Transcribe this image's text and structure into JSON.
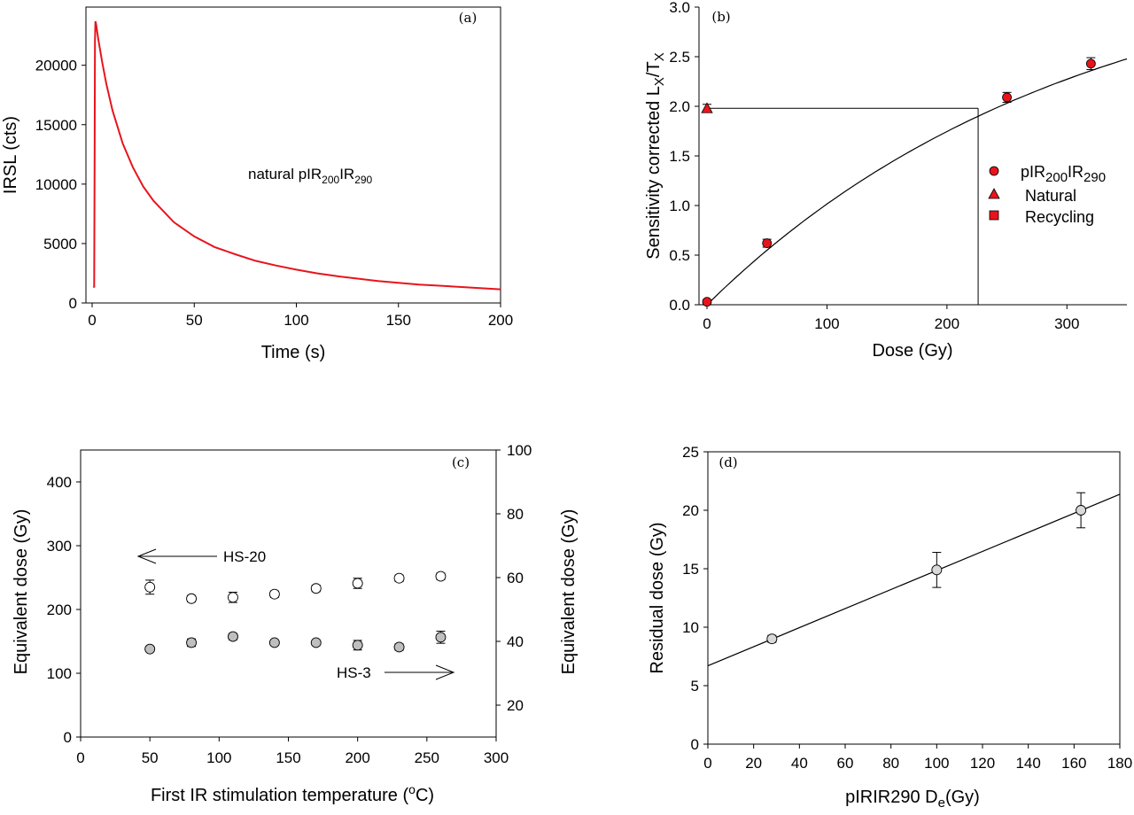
{
  "chart_data": [
    {
      "type": "line",
      "panel_label": "(a)",
      "xlabel": "Time (s)",
      "ylabel": "IRSL (cts)",
      "xlim": [
        0,
        200
      ],
      "ylim": [
        0,
        24000
      ],
      "xticks": [
        "0",
        "50",
        "100",
        "150",
        "200"
      ],
      "yticks": [
        "0",
        "5000",
        "10000",
        "15000",
        "20000"
      ],
      "annotation": {
        "main": "natural pIR",
        "sub1": "200",
        "mid": "IR",
        "sub2": "290"
      },
      "series": [
        {
          "color": "#e8141c",
          "points": [
            [
              0.8,
              1400
            ],
            [
              1.0,
              1300
            ],
            [
              1.2,
              12000
            ],
            [
              1.4,
              22000
            ],
            [
              1.6,
              23700
            ],
            [
              2,
              23400
            ],
            [
              3,
              22200
            ],
            [
              5,
              20200
            ],
            [
              7,
              18400
            ],
            [
              10,
              16200
            ],
            [
              15,
              13400
            ],
            [
              20,
              11400
            ],
            [
              25,
              9800
            ],
            [
              30,
              8600
            ],
            [
              40,
              6800
            ],
            [
              50,
              5600
            ],
            [
              60,
              4700
            ],
            [
              70,
              4100
            ],
            [
              80,
              3550
            ],
            [
              90,
              3150
            ],
            [
              100,
              2800
            ],
            [
              110,
              2500
            ],
            [
              120,
              2250
            ],
            [
              130,
              2050
            ],
            [
              140,
              1850
            ],
            [
              150,
              1700
            ],
            [
              160,
              1550
            ],
            [
              170,
              1450
            ],
            [
              180,
              1350
            ],
            [
              190,
              1250
            ],
            [
              200,
              1150
            ]
          ]
        }
      ]
    },
    {
      "type": "scatter",
      "panel_label": "(b)",
      "xlabel": "Dose (Gy)",
      "ylabel": {
        "main": "Sensitivity corrected L",
        "sub1": "X",
        "mid": "/T",
        "sub2": "X"
      },
      "xlim": [
        0,
        350
      ],
      "ylim": [
        0,
        3.0
      ],
      "xticks": [
        "0",
        "100",
        "200",
        "300"
      ],
      "yticks": [
        "0.0",
        "0.5",
        "1.0",
        "1.5",
        "2.0",
        "2.5",
        "3.0"
      ],
      "legend": [
        {
          "marker": "circle",
          "label_main": "pIR",
          "label_sub1": "200",
          "label_mid": "IR",
          "label_sub2": "290"
        },
        {
          "marker": "triangle",
          "label": "Natural"
        },
        {
          "marker": "square",
          "label": "Recycling"
        }
      ],
      "legend_position": "right",
      "regenerated_points": [
        {
          "x": 0,
          "y": 0.03,
          "err": 0.02
        },
        {
          "x": 50,
          "y": 0.62,
          "err": 0.04
        },
        {
          "x": 250,
          "y": 2.09,
          "err": 0.05
        },
        {
          "x": 320,
          "y": 2.43,
          "err": 0.06
        }
      ],
      "natural": {
        "x": 0,
        "y": 1.98,
        "err": 0.04
      },
      "de_gy": 226,
      "fit": "saturating exponential through points"
    },
    {
      "type": "scatter",
      "panel_label": "(c)",
      "xlabel": {
        "main": "First IR stimulation temperature (",
        "sup": "o",
        "end": "C)"
      },
      "ylabel_left": "Equivalent dose (Gy)",
      "ylabel_right": "Equivalent dose (Gy)",
      "xlim": [
        0,
        300
      ],
      "ylim_left": [
        0,
        450
      ],
      "ylim_right": [
        10,
        100
      ],
      "xticks": [
        "0",
        "50",
        "100",
        "150",
        "200",
        "250",
        "300"
      ],
      "yticks_left": [
        "0",
        "100",
        "200",
        "300",
        "400"
      ],
      "yticks_right": [
        "20",
        "40",
        "60",
        "80",
        "100"
      ],
      "series": [
        {
          "name": "HS-20",
          "axis": "left",
          "marker": "open circle",
          "points": [
            {
              "x": 50,
              "y": 235,
              "err": 11
            },
            {
              "x": 80,
              "y": 217,
              "err": 5
            },
            {
              "x": 110,
              "y": 219,
              "err": 8
            },
            {
              "x": 140,
              "y": 224,
              "err": 5
            },
            {
              "x": 170,
              "y": 233,
              "err": 5
            },
            {
              "x": 200,
              "y": 241,
              "err": 8
            },
            {
              "x": 230,
              "y": 249,
              "err": 5
            },
            {
              "x": 260,
              "y": 252,
              "err": 5
            }
          ]
        },
        {
          "name": "HS-3",
          "axis": "right",
          "marker": "grey filled circle",
          "points": [
            {
              "x": 50,
              "y": 37.6,
              "err": 0.5
            },
            {
              "x": 80,
              "y": 39.6,
              "err": 1.2
            },
            {
              "x": 110,
              "y": 41.5,
              "err": 1.0
            },
            {
              "x": 140,
              "y": 39.6,
              "err": 0.7
            },
            {
              "x": 170,
              "y": 39.6,
              "err": 0.6
            },
            {
              "x": 200,
              "y": 38.8,
              "err": 1.5
            },
            {
              "x": 230,
              "y": 38.2,
              "err": 1.0
            },
            {
              "x": 260,
              "y": 41.3,
              "err": 1.9
            }
          ]
        }
      ],
      "annotations": [
        "HS-20",
        "HS-3"
      ]
    },
    {
      "type": "scatter",
      "panel_label": "(d)",
      "xlabel": {
        "main": "pIRIR290 D",
        "sub": "e",
        "end": "(Gy)"
      },
      "ylabel": "Residual dose (Gy)",
      "xlim": [
        0,
        180
      ],
      "ylim": [
        0,
        25
      ],
      "xticks": [
        "0",
        "20",
        "40",
        "60",
        "80",
        "100",
        "120",
        "140",
        "160",
        "180"
      ],
      "yticks": [
        "0",
        "5",
        "10",
        "15",
        "20",
        "25"
      ],
      "points": [
        {
          "x": 28,
          "y": 9.0,
          "err": 0.3
        },
        {
          "x": 100,
          "y": 14.9,
          "err": 1.5
        },
        {
          "x": 163,
          "y": 20.0,
          "err": 1.5
        }
      ],
      "fit_line": {
        "slope": 0.0815,
        "intercept": 6.7
      }
    }
  ]
}
